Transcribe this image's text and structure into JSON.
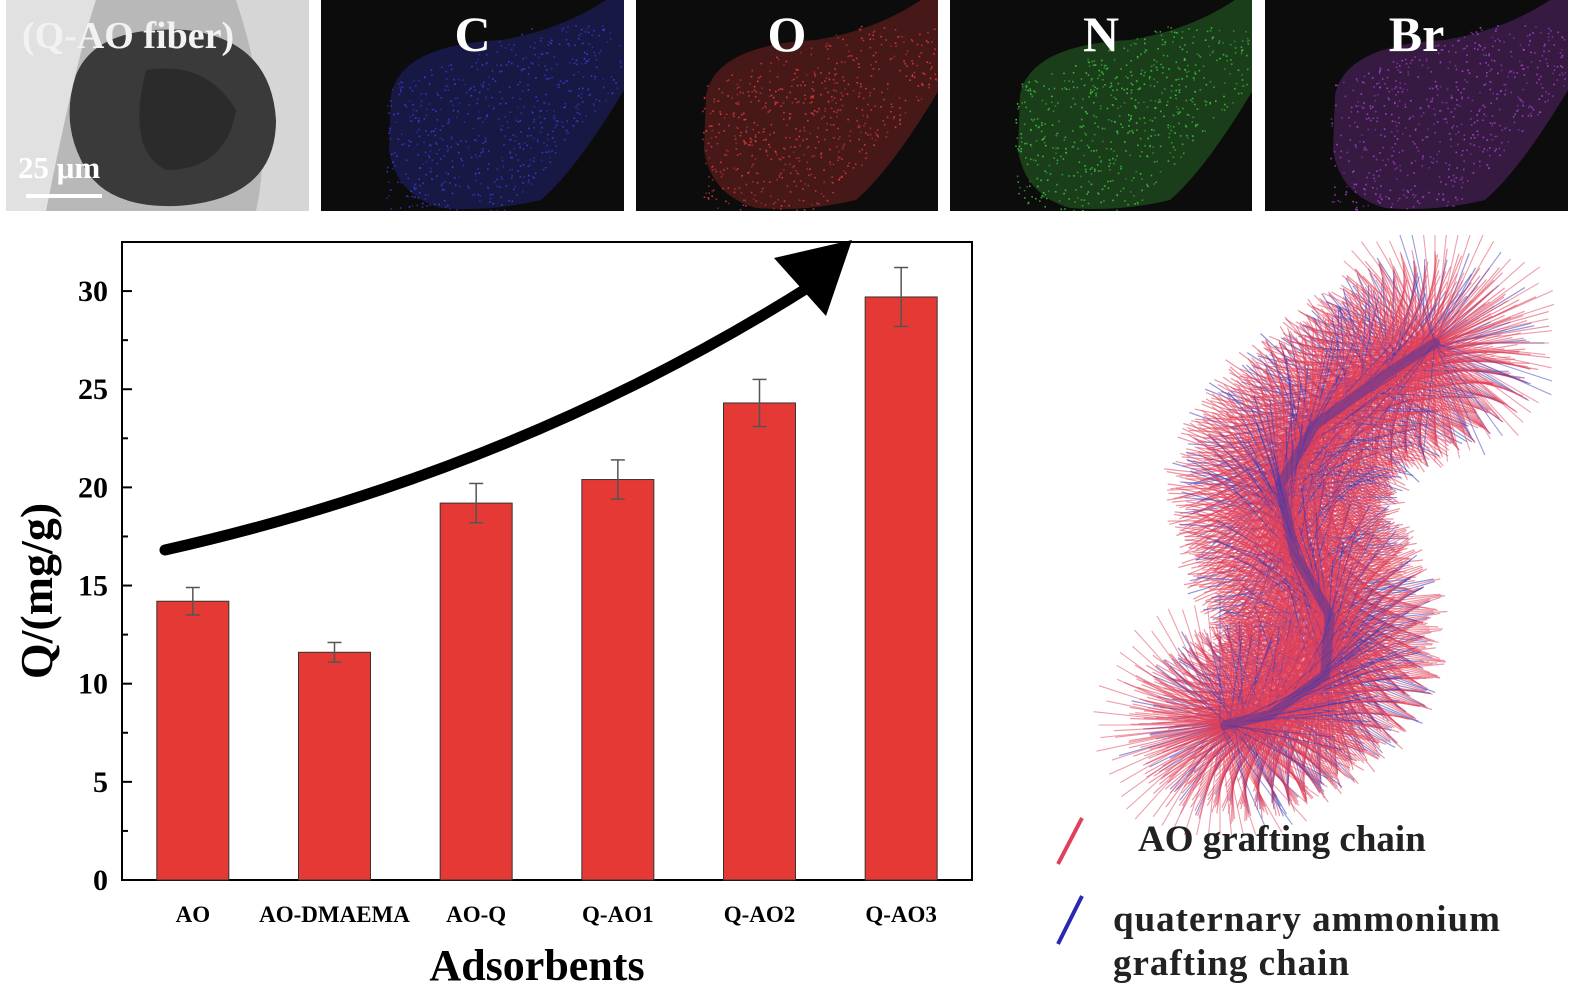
{
  "figure": {
    "panels": [
      {
        "label": "(Q-AO fiber)",
        "kind": "sem",
        "color": "#cfcfcf",
        "scale_label": "25 μm"
      },
      {
        "label": "C",
        "kind": "map",
        "color": "#3b3bd6"
      },
      {
        "label": "O",
        "kind": "map",
        "color": "#e03a3a"
      },
      {
        "label": "N",
        "kind": "map",
        "color": "#3fc23f"
      },
      {
        "label": "Br",
        "kind": "map",
        "color": "#a640d0"
      }
    ],
    "legend": [
      {
        "label": "AO grafting chain",
        "color": "#e0405a"
      },
      {
        "label": "quaternary ammonium",
        "label2": "grafting chain",
        "color": "#2a2ab0"
      }
    ]
  },
  "chart_data": {
    "type": "bar",
    "categories": [
      "AO",
      "AO-DMAEMA",
      "AO-Q",
      "Q-AO1",
      "Q-AO2",
      "Q-AO3"
    ],
    "values": [
      14.2,
      11.6,
      19.2,
      20.4,
      24.3,
      29.7
    ],
    "errors": [
      0.7,
      0.5,
      1.0,
      1.0,
      1.2,
      1.5
    ],
    "xlabel": "Adsorbents",
    "ylabel": "Q/(mg/g)",
    "ylim": [
      0,
      32.5
    ],
    "yticks": [
      "0",
      "5",
      "10",
      "15",
      "20",
      "25",
      "30"
    ],
    "bar_color": "#e53935",
    "grid": false,
    "annotation": "curved arrow indicating increasing trend"
  }
}
